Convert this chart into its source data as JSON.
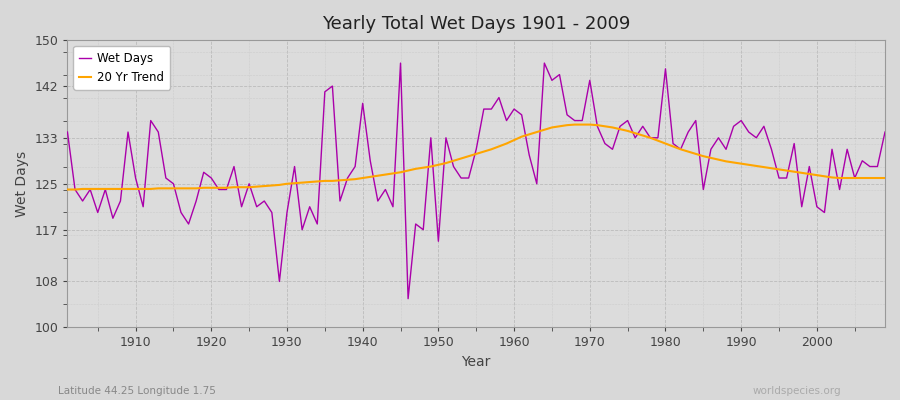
{
  "title": "Yearly Total Wet Days 1901 - 2009",
  "xlabel": "Year",
  "ylabel": "Wet Days",
  "subtitle_left": "Latitude 44.25 Longitude 1.75",
  "subtitle_right": "worldspecies.org",
  "ylim": [
    100,
    150
  ],
  "yticks": [
    100,
    108,
    117,
    125,
    133,
    142,
    150
  ],
  "xlim": [
    1901,
    2009
  ],
  "xticks": [
    1910,
    1920,
    1930,
    1940,
    1950,
    1960,
    1970,
    1980,
    1990,
    2000
  ],
  "line_color": "#aa00aa",
  "trend_color": "#ffa500",
  "background_color": "#e0e0e0",
  "plot_bg_color": "#dcdcdc",
  "grid_color": "#c8c8c8",
  "years": [
    1901,
    1902,
    1903,
    1904,
    1905,
    1906,
    1907,
    1908,
    1909,
    1910,
    1911,
    1912,
    1913,
    1914,
    1915,
    1916,
    1917,
    1918,
    1919,
    1920,
    1921,
    1922,
    1923,
    1924,
    1925,
    1926,
    1927,
    1928,
    1929,
    1930,
    1931,
    1932,
    1933,
    1934,
    1935,
    1936,
    1937,
    1938,
    1939,
    1940,
    1941,
    1942,
    1943,
    1944,
    1945,
    1946,
    1947,
    1948,
    1949,
    1950,
    1951,
    1952,
    1953,
    1954,
    1955,
    1956,
    1957,
    1958,
    1959,
    1960,
    1961,
    1962,
    1963,
    1964,
    1965,
    1966,
    1967,
    1968,
    1969,
    1970,
    1971,
    1972,
    1973,
    1974,
    1975,
    1976,
    1977,
    1978,
    1979,
    1980,
    1981,
    1982,
    1983,
    1984,
    1985,
    1986,
    1987,
    1988,
    1989,
    1990,
    1991,
    1992,
    1993,
    1994,
    1995,
    1996,
    1997,
    1998,
    1999,
    2000,
    2001,
    2002,
    2003,
    2004,
    2005,
    2006,
    2007,
    2008,
    2009
  ],
  "wet_days": [
    134,
    124,
    122,
    124,
    120,
    124,
    119,
    122,
    134,
    126,
    121,
    136,
    134,
    126,
    125,
    120,
    118,
    122,
    127,
    126,
    124,
    124,
    128,
    121,
    125,
    121,
    122,
    120,
    108,
    120,
    128,
    117,
    121,
    118,
    141,
    142,
    122,
    126,
    128,
    139,
    129,
    122,
    124,
    121,
    146,
    105,
    118,
    117,
    133,
    115,
    133,
    128,
    126,
    126,
    131,
    138,
    138,
    140,
    136,
    138,
    137,
    130,
    125,
    146,
    143,
    144,
    137,
    136,
    136,
    143,
    135,
    132,
    131,
    135,
    136,
    133,
    135,
    133,
    133,
    145,
    132,
    131,
    134,
    136,
    124,
    131,
    133,
    131,
    135,
    136,
    134,
    133,
    135,
    131,
    126,
    126,
    132,
    121,
    128,
    121,
    120,
    131,
    124,
    131,
    126,
    129,
    128,
    128,
    134
  ],
  "trend": [
    124.0,
    124.0,
    124.1,
    124.1,
    124.1,
    124.1,
    124.1,
    124.1,
    124.1,
    124.1,
    124.1,
    124.1,
    124.2,
    124.2,
    124.2,
    124.2,
    124.2,
    124.2,
    124.3,
    124.3,
    124.3,
    124.3,
    124.4,
    124.4,
    124.4,
    124.5,
    124.6,
    124.7,
    124.8,
    125.0,
    125.1,
    125.2,
    125.3,
    125.4,
    125.5,
    125.5,
    125.6,
    125.7,
    125.8,
    126.0,
    126.2,
    126.4,
    126.6,
    126.8,
    127.0,
    127.3,
    127.6,
    127.8,
    128.0,
    128.3,
    128.6,
    129.0,
    129.4,
    129.8,
    130.2,
    130.6,
    131.0,
    131.5,
    132.0,
    132.6,
    133.2,
    133.6,
    134.0,
    134.4,
    134.8,
    135.0,
    135.2,
    135.3,
    135.3,
    135.3,
    135.2,
    135.0,
    134.8,
    134.5,
    134.2,
    133.8,
    133.4,
    133.0,
    132.5,
    132.0,
    131.5,
    131.0,
    130.6,
    130.2,
    129.8,
    129.5,
    129.2,
    128.9,
    128.7,
    128.5,
    128.3,
    128.1,
    127.9,
    127.7,
    127.5,
    127.3,
    127.1,
    126.9,
    126.7,
    126.5,
    126.3,
    126.1,
    126.0,
    126.0,
    126.0,
    126.0,
    126.0,
    126.0,
    126.0
  ]
}
